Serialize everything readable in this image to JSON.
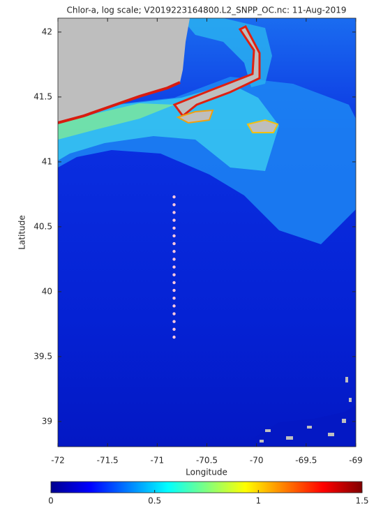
{
  "chart_data": {
    "type": "scatter",
    "title": "Chlor-a, log scale; V2019223164800.L2_SNPP_OC.nc: 11-Aug-2019",
    "x_label": "Longitude",
    "y_label": "Latitude",
    "xlim": [
      -72,
      -69
    ],
    "ylim": [
      38.806,
      42.107
    ],
    "xticks": [
      -72,
      -71.5,
      -71,
      -70.5,
      -70,
      -69.5,
      -69
    ],
    "yticks": [
      39,
      39.5,
      40,
      40.5,
      41,
      41.5,
      42
    ],
    "series": [
      {
        "color": "#ffc8dc",
        "x": [
          -70.83,
          -70.83,
          -70.83,
          -70.83,
          -70.83,
          -70.83,
          -70.83,
          -70.83,
          -70.83,
          -70.83,
          -70.83,
          -70.83,
          -70.83,
          -70.83,
          -70.83,
          -70.83,
          -70.83,
          -70.83,
          -70.83
        ],
        "values": [
          40.73,
          40.67,
          40.61,
          40.55,
          40.49,
          40.43,
          40.37,
          40.31,
          40.25,
          40.19,
          40.13,
          40.07,
          40.01,
          39.95,
          39.89,
          39.83,
          39.77,
          39.71,
          39.65
        ]
      }
    ],
    "colorbar": {
      "lim": [
        0,
        1.5
      ],
      "ticks": [
        0,
        0.5,
        1,
        1.5
      ]
    }
  }
}
